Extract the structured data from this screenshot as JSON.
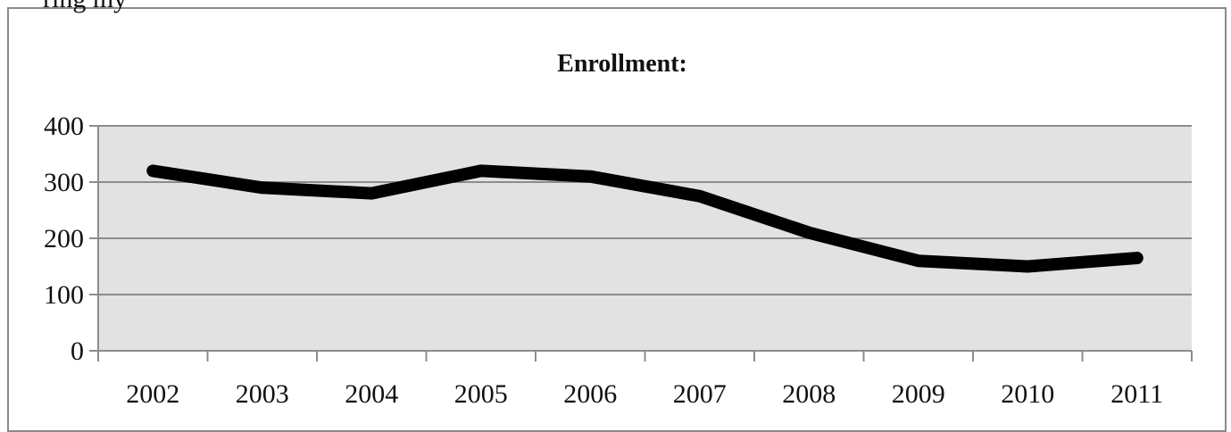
{
  "top_fragment": "ring my",
  "chart_data": {
    "type": "line",
    "title": "Enrollment:",
    "categories": [
      "2002",
      "2003",
      "2004",
      "2005",
      "2006",
      "2007",
      "2008",
      "2009",
      "2010",
      "2011"
    ],
    "series": [
      {
        "values": [
          320,
          290,
          280,
          320,
          310,
          275,
          210,
          160,
          150,
          165
        ]
      }
    ],
    "ylim": [
      0,
      400
    ],
    "yticks": [
      "0",
      "100",
      "200",
      "300",
      "400"
    ],
    "xlabel": "",
    "ylabel": "",
    "grid": true,
    "colors": {
      "line": "#000000",
      "plot_bg": "#e2e2e2",
      "grid": "#8c8c8c",
      "frame": "#8a8a8a"
    }
  }
}
